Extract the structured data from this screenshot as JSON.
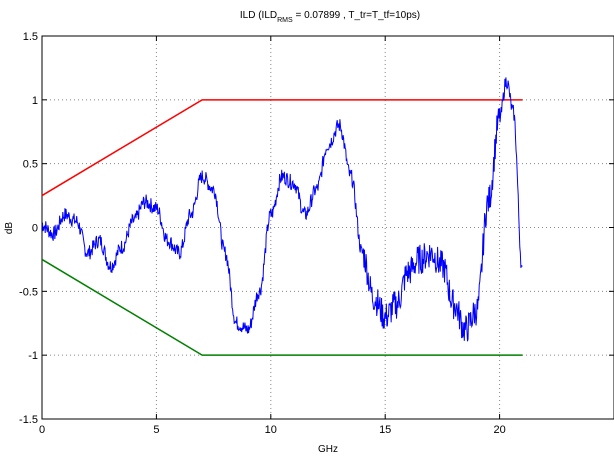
{
  "chart_data": {
    "type": "line",
    "title": {
      "prefix": "ILD  (ILD",
      "subscript": "RMS",
      "suffix": " = 0.07899    ,   T_tr=T_tf=10ps)"
    },
    "xlabel": "GHz",
    "ylabel": "dB",
    "xlim": [
      0,
      25
    ],
    "ylim": [
      -1.5,
      1.5
    ],
    "xticks": [
      0,
      5,
      10,
      15,
      20
    ],
    "yticks": [
      -1.5,
      -1,
      -0.5,
      0,
      0.5,
      1,
      1.5
    ],
    "xtick_labels": [
      "0",
      "5",
      "10",
      "15",
      "20"
    ],
    "ytick_labels": [
      "-1.5",
      "-1",
      "-0.5",
      "0",
      "0.5",
      "1",
      "1.5"
    ],
    "grid": true,
    "colors": {
      "upper": "#ff0000",
      "lower": "#008000",
      "ild": "#0000ff"
    },
    "series": [
      {
        "key": "upper",
        "x": [
          0,
          7,
          21
        ],
        "y": [
          0.25,
          1.0,
          1.0
        ]
      },
      {
        "key": "lower",
        "x": [
          0,
          7,
          21
        ],
        "y": [
          -0.25,
          -1.0,
          -1.0
        ]
      },
      {
        "key": "ild",
        "x": [
          0,
          0.5,
          1.0,
          1.5,
          2.0,
          2.5,
          3.0,
          3.5,
          4.0,
          4.5,
          5.0,
          5.5,
          6.0,
          6.5,
          7.0,
          7.5,
          8.0,
          8.5,
          9.0,
          9.5,
          10.0,
          10.5,
          11.0,
          11.5,
          12.0,
          12.5,
          13.0,
          13.5,
          14.0,
          14.5,
          15.0,
          15.5,
          16.0,
          16.5,
          17.0,
          17.5,
          18.0,
          18.5,
          19.0,
          19.5,
          20.0,
          20.3,
          20.6,
          21.0
        ],
        "y": [
          0.02,
          -0.05,
          0.1,
          0.05,
          -0.2,
          -0.1,
          -0.3,
          -0.15,
          0.05,
          0.2,
          0.15,
          -0.1,
          -0.2,
          0.1,
          0.4,
          0.3,
          -0.2,
          -0.75,
          -0.8,
          -0.5,
          0.1,
          0.4,
          0.35,
          0.1,
          0.3,
          0.65,
          0.8,
          0.4,
          -0.2,
          -0.55,
          -0.7,
          -0.6,
          -0.35,
          -0.25,
          -0.2,
          -0.3,
          -0.6,
          -0.8,
          -0.65,
          0.2,
          0.85,
          1.15,
          0.9,
          -0.35
        ]
      }
    ]
  }
}
